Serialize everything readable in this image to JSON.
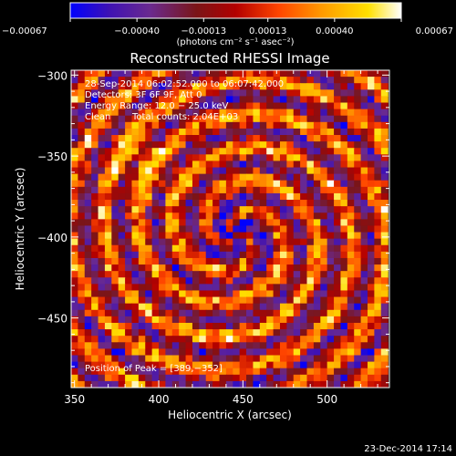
{
  "chart_data": {
    "type": "heatmap",
    "title": "Reconstructed RHESSI Image",
    "xlabel": "Heliocentric X (arcsec)",
    "ylabel": "Heliocentric Y (arcsec)",
    "xlim": [
      348,
      537
    ],
    "ylim": [
      -493,
      -297
    ],
    "x_ticks": [
      350,
      400,
      450,
      500
    ],
    "x_tick_labels": [
      "350",
      "400",
      "450",
      "500"
    ],
    "y_ticks": [
      -300,
      -350,
      -400,
      -450
    ],
    "y_tick_labels": [
      "−300",
      "−350",
      "−400",
      "−450"
    ],
    "colorbar": {
      "range": [
        -0.00067,
        0.00067
      ],
      "ticks": [
        -0.00067,
        -0.0004,
        -0.00013,
        0.00013,
        0.0004,
        0.00067
      ],
      "tick_labels": [
        "−0.00067",
        "−0.00040",
        "−0.00013",
        "0.00013",
        "0.00040",
        "0.00067"
      ],
      "unit_label": "(photons cm⁻² s⁻¹ asec⁻²)",
      "colormap": [
        "#0000ff",
        "#3f12b3",
        "#6a2a90",
        "#7a1518",
        "#b30000",
        "#ff4500",
        "#ff9a00",
        "#ffe000",
        "#ffffff"
      ]
    },
    "annotations": [
      "28-Sep-2014 06:02:52.000 to 06:07:42.000",
      "Detectors: 3F 6F 9F, Att 0",
      "Energy Range: 12.0 − 25.0 keV",
      "Clean",
      "Total counts: 2.04E+03"
    ],
    "peak_label": "Position of Peak = [389,−352]",
    "peak": [
      389,
      -352
    ],
    "grid": {
      "x0": 348,
      "y0": -297,
      "pixel_arcsec": 4,
      "nx": 47,
      "ny": 49
    },
    "grid_note": "intensity field procedurally approximated (noisy ring pattern)"
  },
  "footer": {
    "timestamp": "23-Dec-2014 17:14"
  }
}
